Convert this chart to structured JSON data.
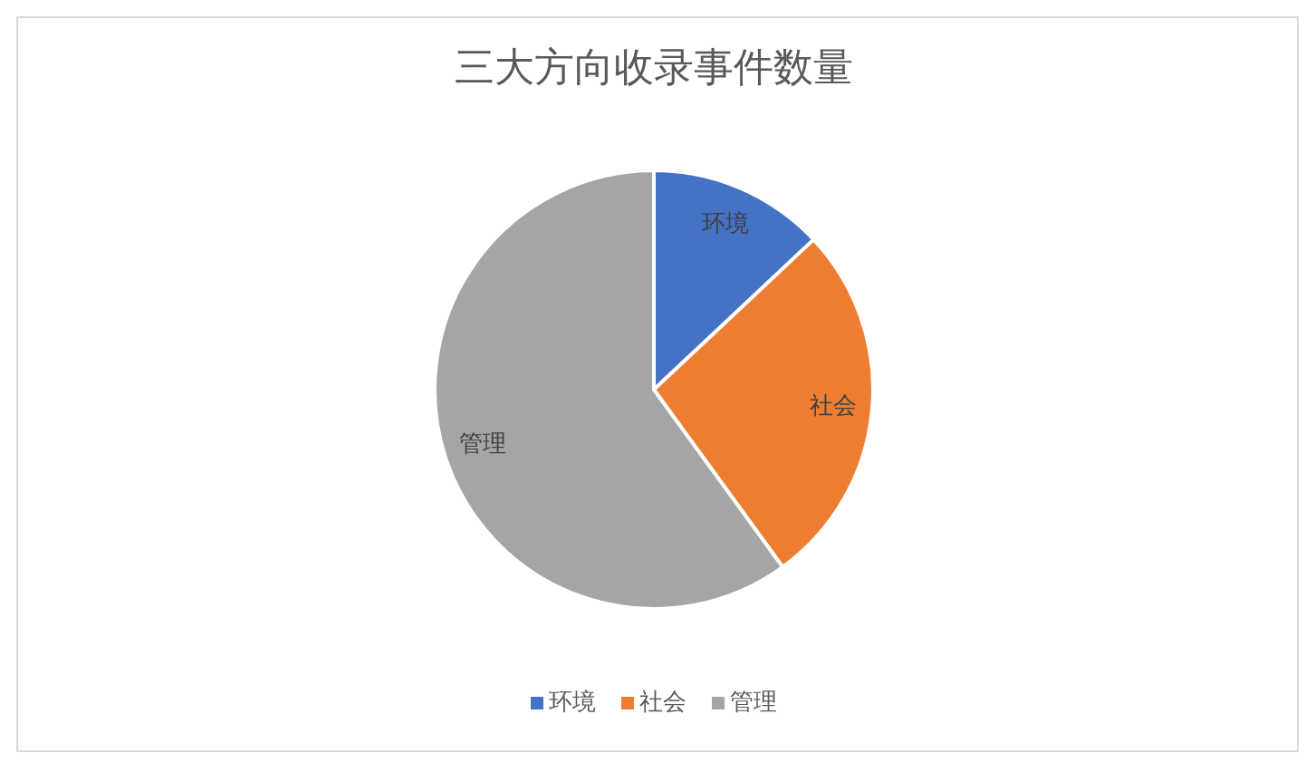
{
  "chart_data": {
    "type": "pie",
    "title": "三大方向收录事件数量",
    "categories": [
      "环境",
      "社会",
      "管理"
    ],
    "values": [
      13,
      27,
      60
    ],
    "colors": [
      "#4472c4",
      "#ed7d31",
      "#a5a5a5"
    ],
    "legend": "bottom"
  }
}
